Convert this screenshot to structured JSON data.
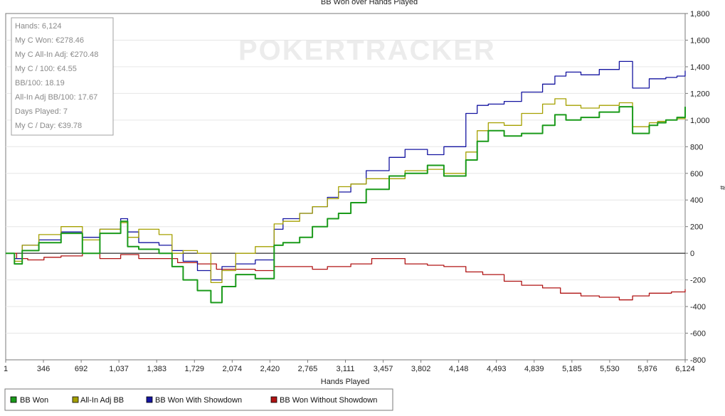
{
  "chart_data": {
    "type": "line",
    "title": "BB Won over Hands Played",
    "xlabel": "Hands Played",
    "ylabel": "#",
    "xlim": [
      1,
      6124
    ],
    "ylim": [
      -800,
      1800
    ],
    "x_ticks": [
      "1",
      "346",
      "692",
      "1,037",
      "1,383",
      "1,729",
      "2,074",
      "2,420",
      "2,765",
      "3,111",
      "3,457",
      "3,802",
      "4,148",
      "4,493",
      "4,839",
      "5,185",
      "5,530",
      "5,876",
      "6,124"
    ],
    "y_ticks": [
      -800,
      -600,
      -400,
      -200,
      0,
      200,
      400,
      600,
      800,
      1000,
      1200,
      1400,
      1600,
      1800
    ],
    "y_tick_labels": [
      "-800",
      "-600",
      "-400",
      "-200",
      "0",
      "200",
      "400",
      "600",
      "800",
      "1,000",
      "1,200",
      "1,400",
      "1,600",
      "1,800"
    ],
    "grid": true,
    "legend_position": "bottom-left",
    "series": [
      {
        "name": "BB Won",
        "color": "#1a9a1a",
        "x": [
          1,
          80,
          150,
          300,
          500,
          692,
          850,
          1037,
          1100,
          1200,
          1383,
          1500,
          1600,
          1729,
          1850,
          1950,
          2074,
          2250,
          2420,
          2500,
          2650,
          2765,
          2900,
          3000,
          3111,
          3250,
          3457,
          3600,
          3802,
          3950,
          4148,
          4250,
          4350,
          4493,
          4650,
          4839,
          4950,
          5050,
          5185,
          5350,
          5530,
          5650,
          5800,
          5876,
          5950,
          6050,
          6124
        ],
        "y": [
          0,
          -80,
          20,
          80,
          150,
          0,
          150,
          240,
          50,
          30,
          0,
          -100,
          -200,
          -280,
          -370,
          -250,
          -160,
          -190,
          60,
          80,
          120,
          200,
          260,
          300,
          380,
          480,
          580,
          600,
          660,
          580,
          700,
          840,
          920,
          880,
          900,
          960,
          1040,
          1000,
          1020,
          1060,
          1100,
          900,
          960,
          980,
          1000,
          1020,
          1100
        ]
      },
      {
        "name": "All-In Adj BB",
        "color": "#a5a000",
        "x": [
          1,
          80,
          150,
          300,
          500,
          692,
          850,
          1037,
          1100,
          1200,
          1383,
          1500,
          1600,
          1729,
          1850,
          1950,
          2074,
          2250,
          2420,
          2500,
          2650,
          2765,
          2900,
          3000,
          3111,
          3250,
          3457,
          3600,
          3802,
          3950,
          4148,
          4250,
          4350,
          4493,
          4650,
          4839,
          4950,
          5050,
          5185,
          5350,
          5530,
          5650,
          5800,
          5876,
          5950,
          6050,
          6124
        ],
        "y": [
          0,
          -60,
          60,
          140,
          200,
          100,
          180,
          230,
          120,
          180,
          140,
          0,
          20,
          0,
          -220,
          -130,
          0,
          50,
          220,
          240,
          300,
          350,
          410,
          500,
          520,
          560,
          560,
          620,
          630,
          600,
          760,
          920,
          980,
          960,
          1050,
          1120,
          1160,
          1110,
          1090,
          1110,
          1130,
          950,
          980,
          990,
          1000,
          1010,
          1060
        ]
      },
      {
        "name": "BB Won With Showdown",
        "color": "#1414a0",
        "x": [
          1,
          80,
          150,
          300,
          500,
          692,
          850,
          1037,
          1100,
          1200,
          1383,
          1500,
          1600,
          1729,
          1850,
          1950,
          2074,
          2250,
          2420,
          2500,
          2650,
          2765,
          2900,
          3000,
          3111,
          3250,
          3457,
          3600,
          3802,
          3950,
          4148,
          4250,
          4350,
          4493,
          4650,
          4839,
          4950,
          5050,
          5185,
          5350,
          5530,
          5650,
          5800,
          5876,
          5950,
          6050,
          6124
        ],
        "y": [
          0,
          -40,
          60,
          100,
          160,
          120,
          180,
          260,
          160,
          80,
          60,
          20,
          -60,
          -130,
          -200,
          -100,
          -80,
          -50,
          180,
          260,
          300,
          350,
          420,
          460,
          520,
          620,
          720,
          780,
          740,
          800,
          1050,
          1110,
          1120,
          1140,
          1210,
          1270,
          1330,
          1360,
          1340,
          1380,
          1440,
          1240,
          1310,
          1310,
          1320,
          1330,
          1370
        ]
      },
      {
        "name": "BB Won Without Showdown",
        "color": "#b01414",
        "x": [
          1,
          100,
          200,
          346,
          500,
          692,
          850,
          1037,
          1200,
          1383,
          1550,
          1729,
          1900,
          2074,
          2250,
          2420,
          2600,
          2765,
          2900,
          3111,
          3300,
          3457,
          3600,
          3802,
          3950,
          4148,
          4300,
          4493,
          4650,
          4839,
          5000,
          5185,
          5350,
          5530,
          5650,
          5800,
          5876,
          6000,
          6124
        ],
        "y": [
          0,
          -40,
          -50,
          -30,
          -20,
          0,
          -40,
          -10,
          -40,
          -40,
          -70,
          -80,
          -120,
          -120,
          -130,
          -100,
          -100,
          -120,
          -100,
          -80,
          -40,
          -40,
          -80,
          -90,
          -100,
          -140,
          -160,
          -210,
          -240,
          -260,
          -300,
          -320,
          -330,
          -350,
          -320,
          -300,
          -300,
          -290,
          -270
        ]
      }
    ]
  },
  "stats": [
    "Hands: 6,124",
    "My C Won: €278.46",
    "My C All-In Adj: €270.48",
    "My C / 100: €4.55",
    "BB/100: 18.19",
    "All-In Adj BB/100: 17.67",
    "Days Played: 7",
    "My C / Day: €39.78"
  ],
  "watermark": "POKERTRACKER"
}
